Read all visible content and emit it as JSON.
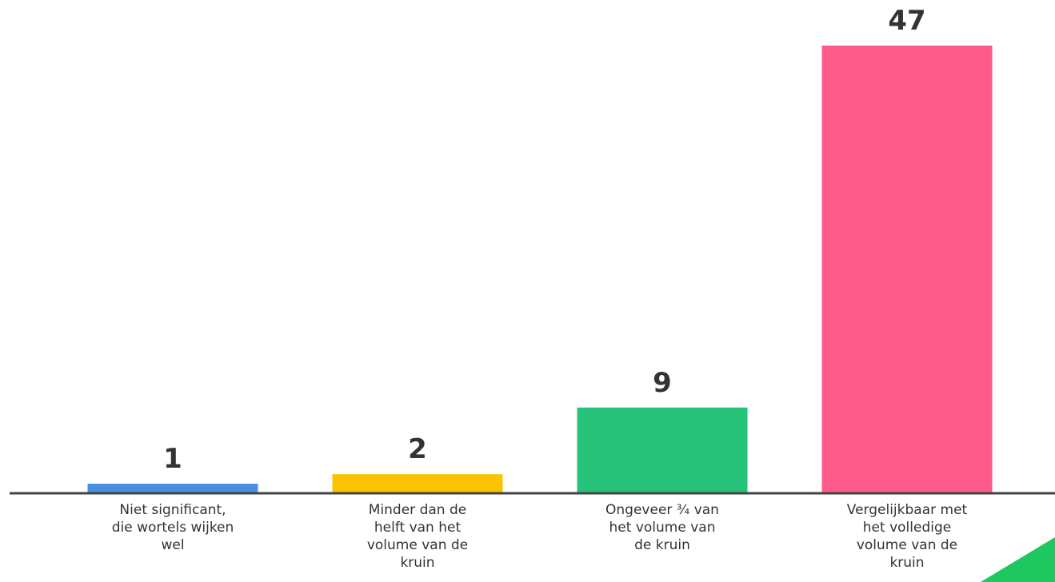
{
  "chart_data": {
    "type": "bar",
    "categories": [
      [
        "Niet significant,",
        "die wortels wijken",
        "wel"
      ],
      [
        "Minder dan de",
        "helft van het",
        "volume van de",
        "kruin"
      ],
      [
        "Ongeveer ¾ van",
        "het volume van",
        "de kruin"
      ],
      [
        "Vergelijkbaar met",
        "het volledige",
        "volume van de",
        "kruin"
      ]
    ],
    "values": [
      1,
      2,
      9,
      47
    ],
    "value_labels": [
      "1",
      "2",
      "9",
      "47"
    ],
    "colors": [
      "#4a90e2",
      "#fbc400",
      "#27c27a",
      "#ff5a8c"
    ],
    "ylim": [
      0,
      47
    ],
    "grid": false,
    "axis_color": "#444444"
  },
  "decoration": {
    "corner_shape_color": "#1fc760"
  }
}
